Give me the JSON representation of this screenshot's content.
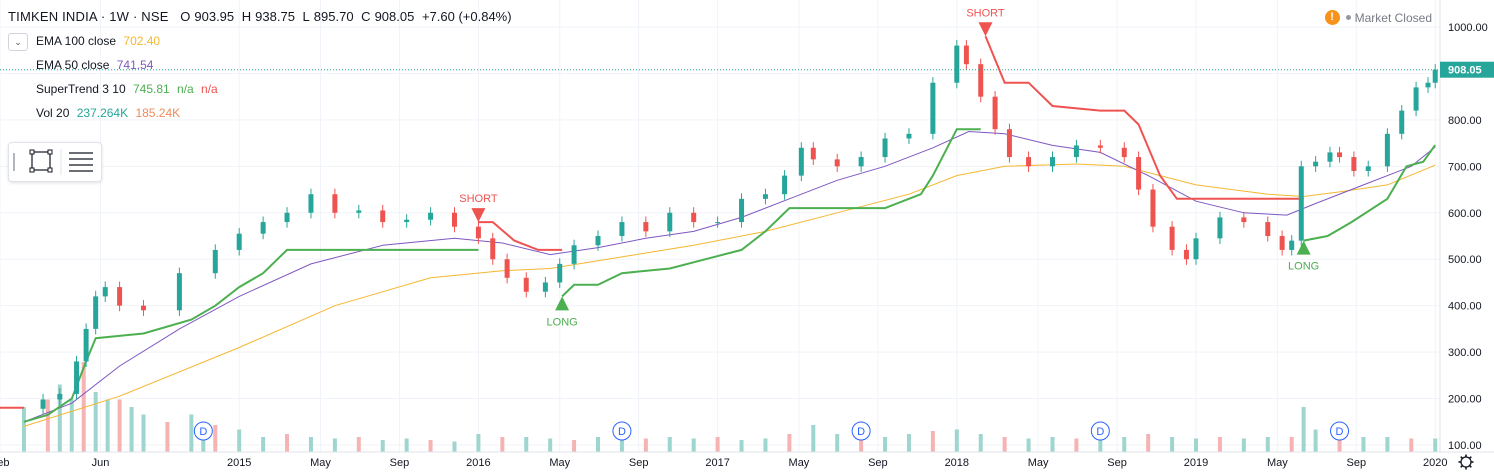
{
  "header": {
    "symbol": "TIMKEN INDIA · 1W · NSE",
    "o_label": "O",
    "o": "903.95",
    "h_label": "H",
    "h": "938.75",
    "l_label": "L",
    "l": "895.70",
    "c_label": "C",
    "c": "908.05",
    "change": "+7.60 (+0.84%)"
  },
  "indicators": {
    "ema100_label": "EMA 100 close",
    "ema100_value": "702.40",
    "ema50_label": "EMA 50 close",
    "ema50_value": "741.54",
    "supertrend_label": "SuperTrend 3 10",
    "supertrend_value": "745.81",
    "supertrend_na1": "n/a",
    "supertrend_na2": "n/a",
    "vol_label": "Vol 20",
    "vol_value1": "237.264K",
    "vol_value2": "185.24K"
  },
  "status": {
    "warning_icon": "!",
    "market": "Market Closed"
  },
  "colors": {
    "up": "#26a69a",
    "down": "#ef5350",
    "ema100": "#f5b731",
    "ema50": "#7e57c2",
    "supertrend_up": "#4caf50",
    "supertrend_down": "#ef5350",
    "vol_up": "#9fd5cf",
    "vol_down": "#f5b3b3",
    "price_label_bg": "#26a69a",
    "ema_a": "#f5b731",
    "ema_b": "#7e57c2",
    "st": "#4caf50",
    "vol_a": "#26a69a",
    "vol_b": "#ef8a5a"
  },
  "chart_data": {
    "type": "candlestick",
    "title": "TIMKEN INDIA · 1W · NSE",
    "x_ticks": [
      "Feb",
      "Jun",
      "2015",
      "May",
      "Sep",
      "2016",
      "May",
      "Sep",
      "2017",
      "May",
      "Sep",
      "2018",
      "May",
      "Sep",
      "2019",
      "May",
      "Sep",
      "2020"
    ],
    "y_ticks": [
      "1000.00",
      "900.00",
      "800.00",
      "700.00",
      "600.00",
      "500.00",
      "400.00",
      "300.00",
      "200.00",
      "100.00"
    ],
    "ylim": [
      100,
      1000
    ],
    "last_price": 908.05,
    "last_price_label": "908.05",
    "close_series": [
      [
        2014.1,
        178
      ],
      [
        2014.18,
        198
      ],
      [
        2014.25,
        210
      ],
      [
        2014.32,
        280
      ],
      [
        2014.36,
        350
      ],
      [
        2014.4,
        420
      ],
      [
        2014.44,
        440
      ],
      [
        2014.5,
        400
      ],
      [
        2014.6,
        390
      ],
      [
        2014.75,
        470
      ],
      [
        2014.9,
        520
      ],
      [
        2015.0,
        555
      ],
      [
        2015.1,
        580
      ],
      [
        2015.2,
        600
      ],
      [
        2015.3,
        640
      ],
      [
        2015.4,
        600
      ],
      [
        2015.5,
        605
      ],
      [
        2015.6,
        580
      ],
      [
        2015.7,
        585
      ],
      [
        2015.8,
        600
      ],
      [
        2015.9,
        570
      ],
      [
        2016.0,
        545
      ],
      [
        2016.06,
        500
      ],
      [
        2016.12,
        460
      ],
      [
        2016.2,
        430
      ],
      [
        2016.28,
        450
      ],
      [
        2016.34,
        490
      ],
      [
        2016.4,
        530
      ],
      [
        2016.5,
        550
      ],
      [
        2016.6,
        580
      ],
      [
        2016.7,
        560
      ],
      [
        2016.8,
        600
      ],
      [
        2016.9,
        580
      ],
      [
        2017.0,
        580
      ],
      [
        2017.1,
        630
      ],
      [
        2017.2,
        640
      ],
      [
        2017.28,
        680
      ],
      [
        2017.35,
        740
      ],
      [
        2017.4,
        715
      ],
      [
        2017.5,
        700
      ],
      [
        2017.6,
        720
      ],
      [
        2017.7,
        760
      ],
      [
        2017.8,
        770
      ],
      [
        2017.9,
        880
      ],
      [
        2018.0,
        960
      ],
      [
        2018.04,
        920
      ],
      [
        2018.1,
        850
      ],
      [
        2018.16,
        780
      ],
      [
        2018.22,
        720
      ],
      [
        2018.3,
        700
      ],
      [
        2018.4,
        720
      ],
      [
        2018.5,
        745
      ],
      [
        2018.6,
        740
      ],
      [
        2018.7,
        720
      ],
      [
        2018.76,
        650
      ],
      [
        2018.82,
        570
      ],
      [
        2018.9,
        520
      ],
      [
        2018.96,
        500
      ],
      [
        2019.0,
        545
      ],
      [
        2019.1,
        590
      ],
      [
        2019.2,
        580
      ],
      [
        2019.3,
        550
      ],
      [
        2019.36,
        520
      ],
      [
        2019.4,
        540
      ],
      [
        2019.44,
        700
      ],
      [
        2019.5,
        710
      ],
      [
        2019.56,
        730
      ],
      [
        2019.6,
        720
      ],
      [
        2019.66,
        690
      ],
      [
        2019.72,
        700
      ],
      [
        2019.8,
        770
      ],
      [
        2019.86,
        820
      ],
      [
        2019.92,
        870
      ],
      [
        2019.97,
        880
      ],
      [
        2020.0,
        908.05
      ]
    ],
    "ema50_series": [
      [
        2014.1,
        150
      ],
      [
        2014.3,
        190
      ],
      [
        2014.5,
        270
      ],
      [
        2014.75,
        350
      ],
      [
        2015.0,
        420
      ],
      [
        2015.3,
        490
      ],
      [
        2015.6,
        530
      ],
      [
        2015.9,
        545
      ],
      [
        2016.1,
        535
      ],
      [
        2016.3,
        510
      ],
      [
        2016.5,
        525
      ],
      [
        2016.7,
        545
      ],
      [
        2016.9,
        560
      ],
      [
        2017.1,
        590
      ],
      [
        2017.3,
        630
      ],
      [
        2017.5,
        670
      ],
      [
        2017.7,
        700
      ],
      [
        2017.9,
        740
      ],
      [
        2018.05,
        775
      ],
      [
        2018.2,
        770
      ],
      [
        2018.4,
        745
      ],
      [
        2018.6,
        730
      ],
      [
        2018.8,
        680
      ],
      [
        2019.0,
        625
      ],
      [
        2019.2,
        600
      ],
      [
        2019.38,
        595
      ],
      [
        2019.5,
        620
      ],
      [
        2019.7,
        660
      ],
      [
        2019.9,
        700
      ],
      [
        2020.0,
        741.54
      ]
    ],
    "ema100_series": [
      [
        2014.1,
        140
      ],
      [
        2014.5,
        205
      ],
      [
        2015.0,
        310
      ],
      [
        2015.4,
        400
      ],
      [
        2015.8,
        460
      ],
      [
        2016.1,
        475
      ],
      [
        2016.3,
        480
      ],
      [
        2016.6,
        505
      ],
      [
        2016.9,
        530
      ],
      [
        2017.2,
        560
      ],
      [
        2017.5,
        600
      ],
      [
        2017.8,
        640
      ],
      [
        2018.0,
        680
      ],
      [
        2018.2,
        700
      ],
      [
        2018.5,
        705
      ],
      [
        2018.7,
        700
      ],
      [
        2018.85,
        680
      ],
      [
        2019.0,
        660
      ],
      [
        2019.3,
        640
      ],
      [
        2019.45,
        635
      ],
      [
        2019.6,
        645
      ],
      [
        2019.8,
        660
      ],
      [
        2020.0,
        702.4
      ]
    ],
    "supertrend_up_series": [
      [
        2014.1,
        150
      ],
      [
        2014.2,
        165
      ],
      [
        2014.3,
        200
      ],
      [
        2014.36,
        280
      ],
      [
        2014.4,
        330
      ],
      [
        2014.6,
        340
      ],
      [
        2014.8,
        370
      ],
      [
        2014.9,
        400
      ],
      [
        2015.0,
        440
      ],
      [
        2015.1,
        470
      ],
      [
        2015.2,
        520
      ],
      [
        2015.4,
        520
      ],
      [
        2015.8,
        520
      ],
      [
        2016.0,
        520
      ],
      null,
      [
        2016.35,
        420
      ],
      [
        2016.4,
        445
      ],
      [
        2016.5,
        445
      ],
      [
        2016.6,
        470
      ],
      [
        2016.8,
        480
      ],
      [
        2016.95,
        500
      ],
      [
        2017.1,
        520
      ],
      [
        2017.2,
        560
      ],
      [
        2017.3,
        610
      ],
      [
        2017.5,
        610
      ],
      [
        2017.7,
        610
      ],
      [
        2017.85,
        640
      ],
      [
        2017.9,
        680
      ],
      [
        2018.0,
        780
      ],
      [
        2018.1,
        780
      ],
      null,
      [
        2019.45,
        540
      ],
      [
        2019.55,
        550
      ],
      [
        2019.65,
        580
      ],
      [
        2019.8,
        630
      ],
      [
        2019.88,
        700
      ],
      [
        2019.95,
        710
      ],
      [
        2020.0,
        745.81
      ]
    ],
    "supertrend_down_series": [
      [
        2014.0,
        180
      ],
      [
        2014.1,
        180
      ],
      null,
      [
        2016.0,
        580
      ],
      [
        2016.06,
        580
      ],
      [
        2016.15,
        540
      ],
      [
        2016.25,
        520
      ],
      [
        2016.35,
        520
      ],
      null,
      [
        2018.12,
        980
      ],
      [
        2018.2,
        880
      ],
      [
        2018.3,
        880
      ],
      [
        2018.4,
        830
      ],
      [
        2018.6,
        820
      ],
      [
        2018.7,
        820
      ],
      [
        2018.76,
        790
      ],
      [
        2018.85,
        680
      ],
      [
        2018.92,
        630
      ],
      [
        2019.1,
        630
      ],
      [
        2019.3,
        630
      ],
      [
        2019.45,
        630
      ]
    ],
    "volume": [
      [
        2014.1,
        30
      ],
      [
        2014.2,
        35
      ],
      [
        2014.25,
        45
      ],
      [
        2014.3,
        35
      ],
      [
        2014.35,
        60
      ],
      [
        2014.4,
        40
      ],
      [
        2014.45,
        35
      ],
      [
        2014.5,
        35
      ],
      [
        2014.55,
        30
      ],
      [
        2014.6,
        25
      ],
      [
        2014.7,
        20
      ],
      [
        2014.8,
        25
      ],
      [
        2014.85,
        20
      ],
      [
        2014.9,
        18
      ],
      [
        2015.0,
        15
      ],
      [
        2015.1,
        10
      ],
      [
        2015.2,
        12
      ],
      [
        2015.3,
        10
      ],
      [
        2015.4,
        9
      ],
      [
        2015.5,
        10
      ],
      [
        2015.6,
        8
      ],
      [
        2015.7,
        9
      ],
      [
        2015.8,
        8
      ],
      [
        2015.9,
        7
      ],
      [
        2016.0,
        12
      ],
      [
        2016.1,
        10
      ],
      [
        2016.2,
        10
      ],
      [
        2016.3,
        9
      ],
      [
        2016.4,
        8
      ],
      [
        2016.5,
        10
      ],
      [
        2016.6,
        8
      ],
      [
        2016.7,
        9
      ],
      [
        2016.8,
        10
      ],
      [
        2016.9,
        9
      ],
      [
        2017.0,
        10
      ],
      [
        2017.1,
        8
      ],
      [
        2017.2,
        9
      ],
      [
        2017.3,
        12
      ],
      [
        2017.4,
        18
      ],
      [
        2017.5,
        12
      ],
      [
        2017.6,
        10
      ],
      [
        2017.7,
        10
      ],
      [
        2017.8,
        12
      ],
      [
        2017.9,
        14
      ],
      [
        2018.0,
        15
      ],
      [
        2018.1,
        12
      ],
      [
        2018.2,
        10
      ],
      [
        2018.3,
        9
      ],
      [
        2018.4,
        10
      ],
      [
        2018.5,
        9
      ],
      [
        2018.6,
        10
      ],
      [
        2018.7,
        10
      ],
      [
        2018.8,
        12
      ],
      [
        2018.9,
        10
      ],
      [
        2019.0,
        9
      ],
      [
        2019.1,
        10
      ],
      [
        2019.2,
        9
      ],
      [
        2019.3,
        10
      ],
      [
        2019.4,
        10
      ],
      [
        2019.45,
        30
      ],
      [
        2019.5,
        15
      ],
      [
        2019.6,
        12
      ],
      [
        2019.7,
        10
      ],
      [
        2019.8,
        10
      ],
      [
        2019.9,
        9
      ],
      [
        2020.0,
        9
      ]
    ],
    "annotations": [
      {
        "label": "SHORT",
        "x": 2016.0,
        "y": 580
      },
      {
        "label": "SHORT",
        "x": 2018.12,
        "y": 980
      },
      {
        "label": "LONG",
        "x": 2016.35,
        "y": 420
      },
      {
        "label": "LONG",
        "x": 2019.45,
        "y": 540
      }
    ],
    "dividend_marks": [
      {
        "label": "D",
        "x": 2014.85
      },
      {
        "label": "D",
        "x": 2016.6
      },
      {
        "label": "D",
        "x": 2017.6
      },
      {
        "label": "D",
        "x": 2018.6
      },
      {
        "label": "D",
        "x": 2019.6
      }
    ]
  }
}
